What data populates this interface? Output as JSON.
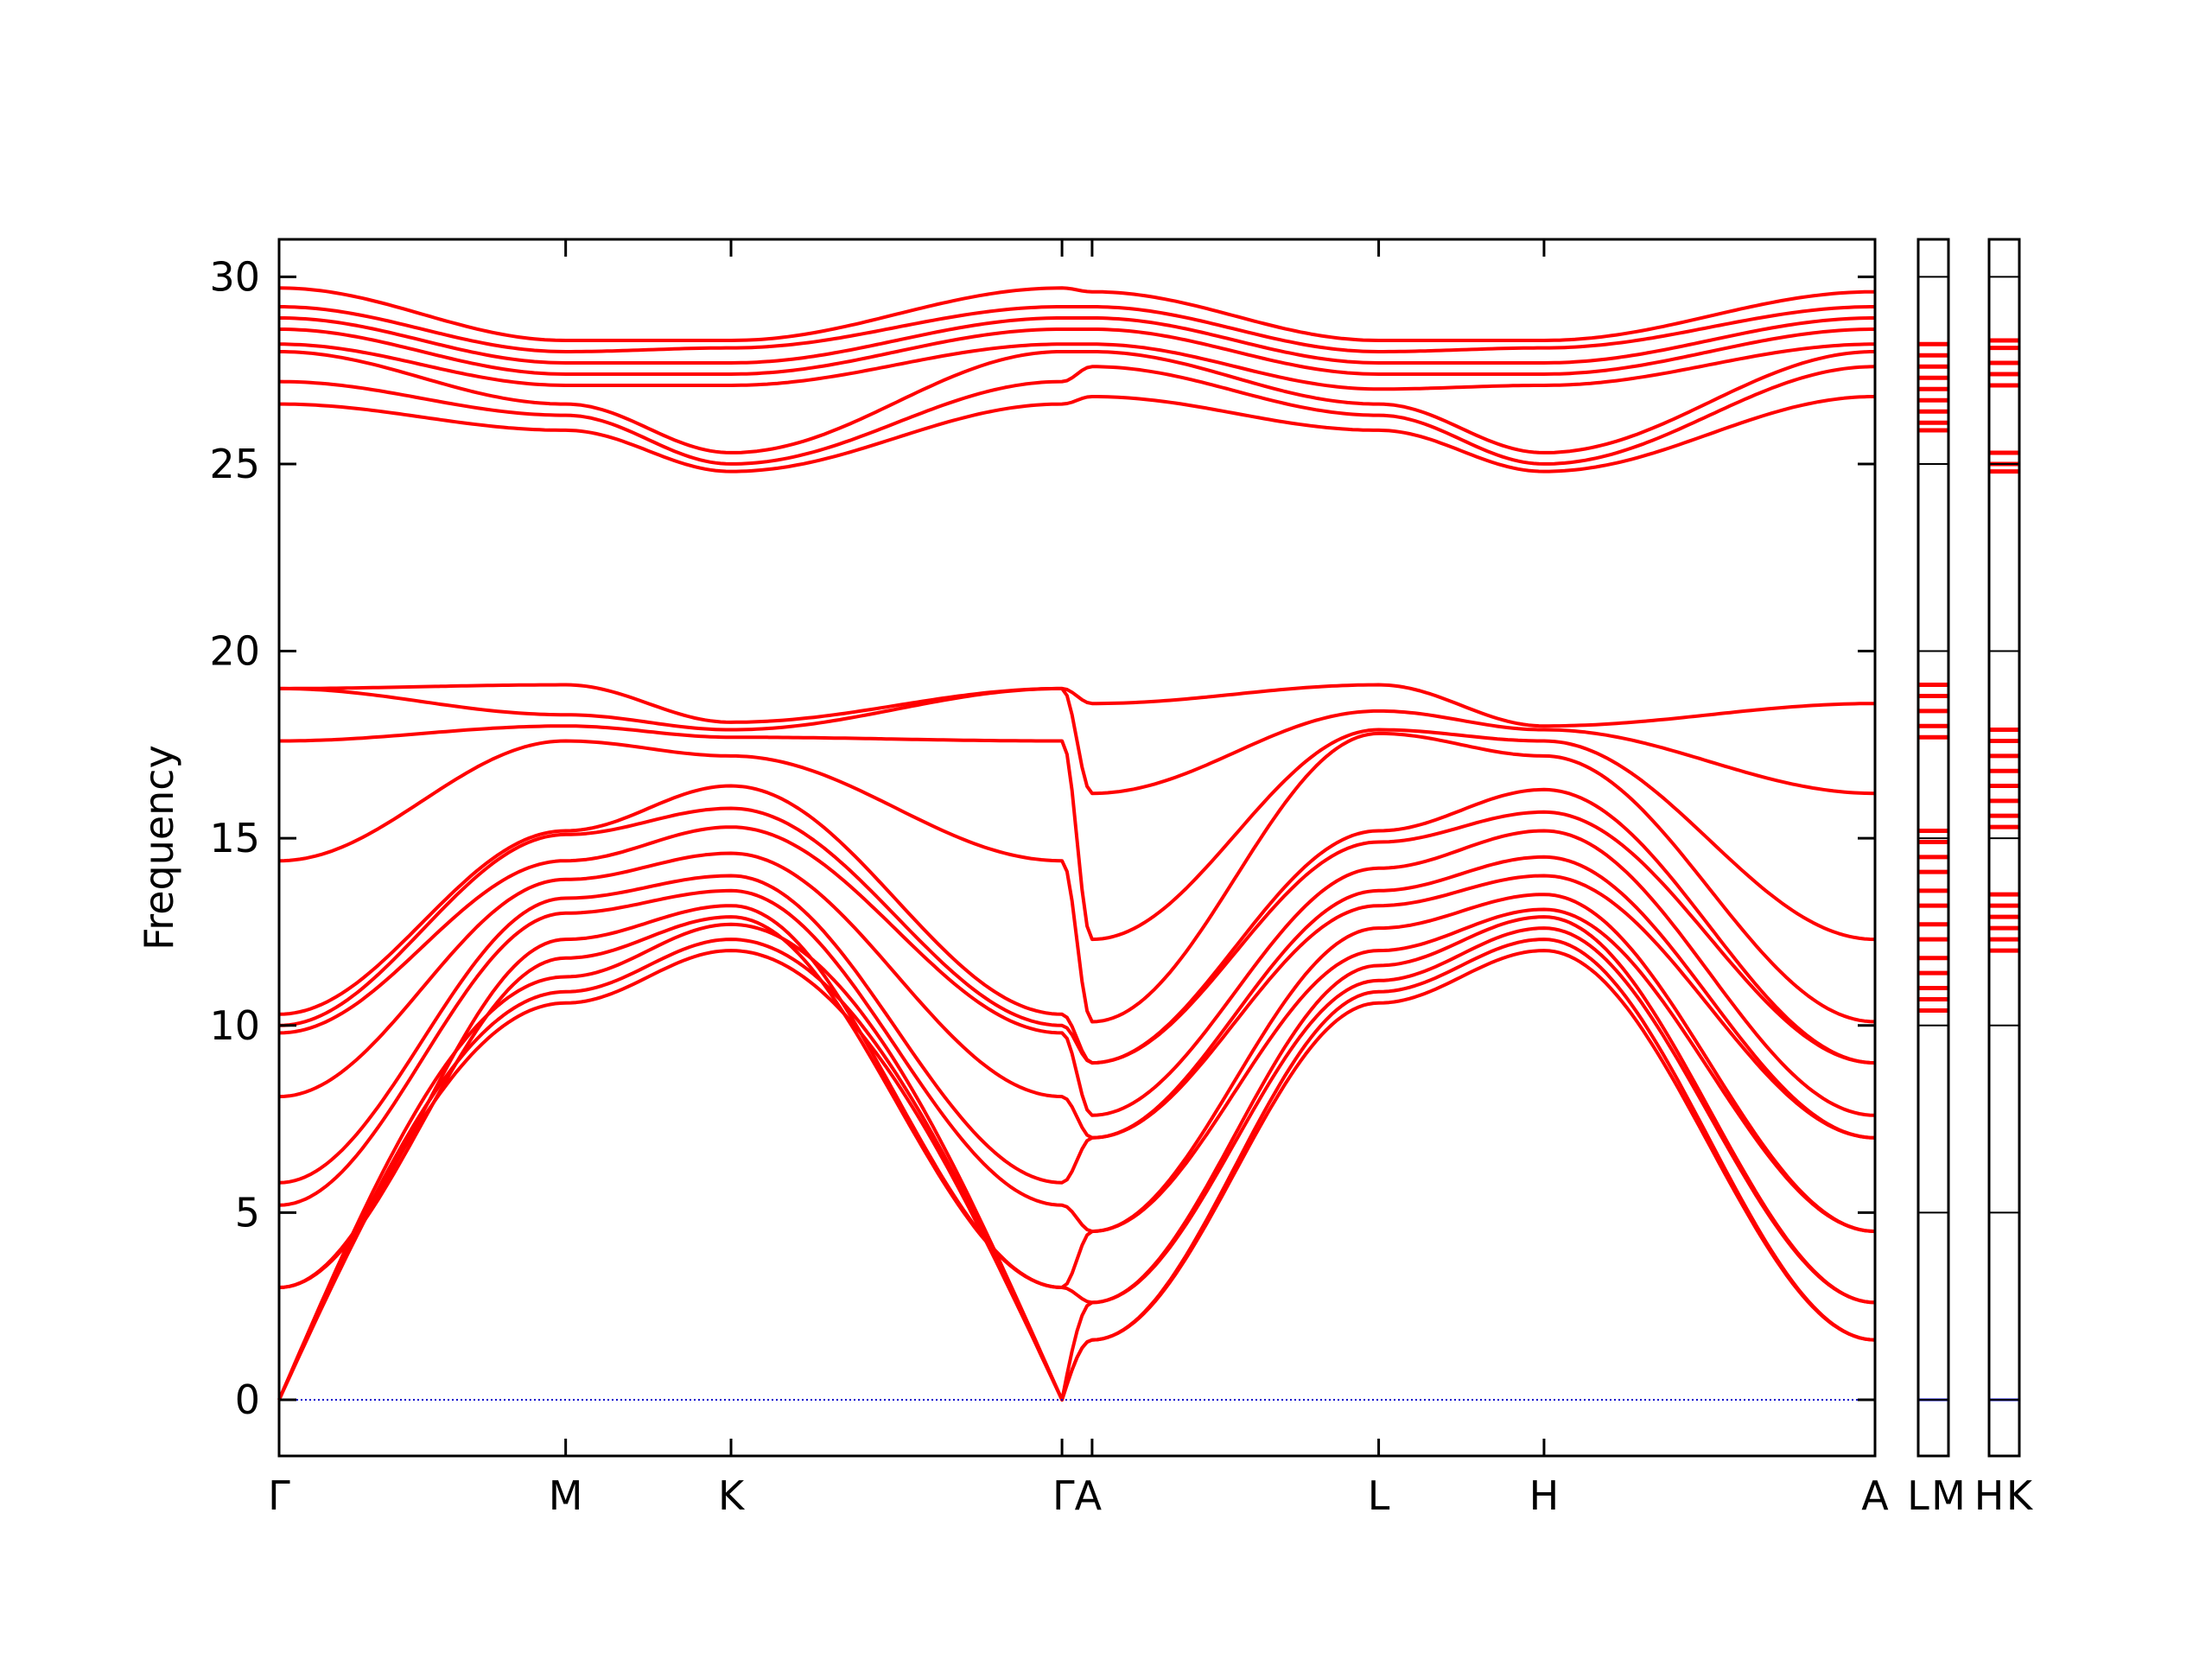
{
  "chart_data": {
    "type": "line",
    "ylabel": "Frequency",
    "ylim": [
      -1.5,
      31
    ],
    "yticks": [
      0,
      5,
      10,
      15,
      20,
      25,
      30
    ],
    "zero_line_color": "#0000cc",
    "band_color": "#ff0000",
    "main_panel": {
      "path_labels": [
        "Γ",
        "M",
        "K",
        "ΓA",
        "L",
        "H",
        "A"
      ],
      "segments": [
        {
          "from": "Γ",
          "to": "M",
          "length": 1.0
        },
        {
          "from": "M",
          "to": "K",
          "length": 0.577
        },
        {
          "from": "K",
          "to": "Γ",
          "length": 1.155
        },
        {
          "from": "Γ",
          "to": "A",
          "length": 0.105
        },
        {
          "from": "A",
          "to": "L",
          "length": 1.0
        },
        {
          "from": "L",
          "to": "H",
          "length": 0.577
        },
        {
          "from": "H",
          "to": "A",
          "length": 1.155
        }
      ],
      "series": [
        {
          "values": [
            0,
            10.6,
            12.0,
            0,
            1.6,
            10.6,
            12.0,
            1.6
          ]
        },
        {
          "values": [
            0,
            10.9,
            12.3,
            0,
            1.6,
            10.9,
            12.3,
            1.6
          ]
        },
        {
          "values": [
            0,
            11.3,
            12.7,
            0,
            2.6,
            11.2,
            12.6,
            2.6
          ]
        },
        {
          "values": [
            3.0,
            11.8,
            12.9,
            3.0,
            2.6,
            11.6,
            12.9,
            2.6
          ]
        },
        {
          "values": [
            3.0,
            12.3,
            13.2,
            3.0,
            4.5,
            12.0,
            13.1,
            4.5
          ]
        },
        {
          "values": [
            5.2,
            13.0,
            13.6,
            5.2,
            4.5,
            12.6,
            13.5,
            4.5
          ]
        },
        {
          "values": [
            5.8,
            13.4,
            14.0,
            5.8,
            7.0,
            13.2,
            14.0,
            7.0
          ]
        },
        {
          "values": [
            8.1,
            13.9,
            14.6,
            8.1,
            7.0,
            13.6,
            14.5,
            7.0
          ]
        },
        {
          "values": [
            9.8,
            14.4,
            15.3,
            9.8,
            7.6,
            14.2,
            15.2,
            7.6
          ]
        },
        {
          "values": [
            10.0,
            15.1,
            15.8,
            10.0,
            9.0,
            14.9,
            15.7,
            9.0
          ]
        },
        {
          "values": [
            10.3,
            15.2,
            16.4,
            10.3,
            9.0,
            15.2,
            16.3,
            9.0
          ]
        },
        {
          "values": [
            14.4,
            17.6,
            17.2,
            14.4,
            10.1,
            17.8,
            17.2,
            10.1
          ]
        },
        {
          "values": [
            17.6,
            18.0,
            17.7,
            17.6,
            12.3,
            17.9,
            17.6,
            12.3
          ]
        },
        {
          "values": [
            19.0,
            18.3,
            17.9,
            19.0,
            16.2,
            18.4,
            17.9,
            16.2
          ]
        },
        {
          "values": [
            19.0,
            19.1,
            18.1,
            19.0,
            18.6,
            19.1,
            18.0,
            18.6
          ]
        },
        {
          "values": [
            26.6,
            25.9,
            24.8,
            26.6,
            26.8,
            25.9,
            24.8,
            26.8
          ]
        },
        {
          "values": [
            27.2,
            26.3,
            25.0,
            27.2,
            27.6,
            26.3,
            25.0,
            27.6
          ]
        },
        {
          "values": [
            28.0,
            26.6,
            25.3,
            28.0,
            28.0,
            26.6,
            25.3,
            28.0
          ]
        },
        {
          "values": [
            28.2,
            27.1,
            27.1,
            28.2,
            28.2,
            27.0,
            27.1,
            28.2
          ]
        },
        {
          "values": [
            28.6,
            27.4,
            27.4,
            28.6,
            28.6,
            27.4,
            27.4,
            28.6
          ]
        },
        {
          "values": [
            28.9,
            27.7,
            27.7,
            28.9,
            28.9,
            27.7,
            27.7,
            28.9
          ]
        },
        {
          "values": [
            29.2,
            28.0,
            28.1,
            29.2,
            29.2,
            28.0,
            28.1,
            29.2
          ]
        },
        {
          "values": [
            29.7,
            28.3,
            28.3,
            29.7,
            29.6,
            28.3,
            28.3,
            29.6
          ]
        }
      ]
    },
    "side_panels": [
      {
        "labels": [
          "L",
          "M"
        ],
        "levels": [
          0,
          10.4,
          10.7,
          11.0,
          11.4,
          11.8,
          12.3,
          12.7,
          13.2,
          13.6,
          14.1,
          14.5,
          14.9,
          15.2,
          17.7,
          18.0,
          18.4,
          18.8,
          19.1,
          25.9,
          26.1,
          26.4,
          26.7,
          27.0,
          27.3,
          27.6,
          27.9,
          28.2
        ]
      },
      {
        "labels": [
          "H",
          "K"
        ],
        "levels": [
          0,
          12.0,
          12.3,
          12.6,
          12.9,
          13.2,
          13.5,
          15.3,
          15.6,
          16.0,
          16.4,
          16.8,
          17.2,
          17.6,
          17.9,
          24.8,
          25.0,
          25.3,
          27.1,
          27.4,
          27.7,
          28.1,
          28.3
        ]
      }
    ]
  }
}
